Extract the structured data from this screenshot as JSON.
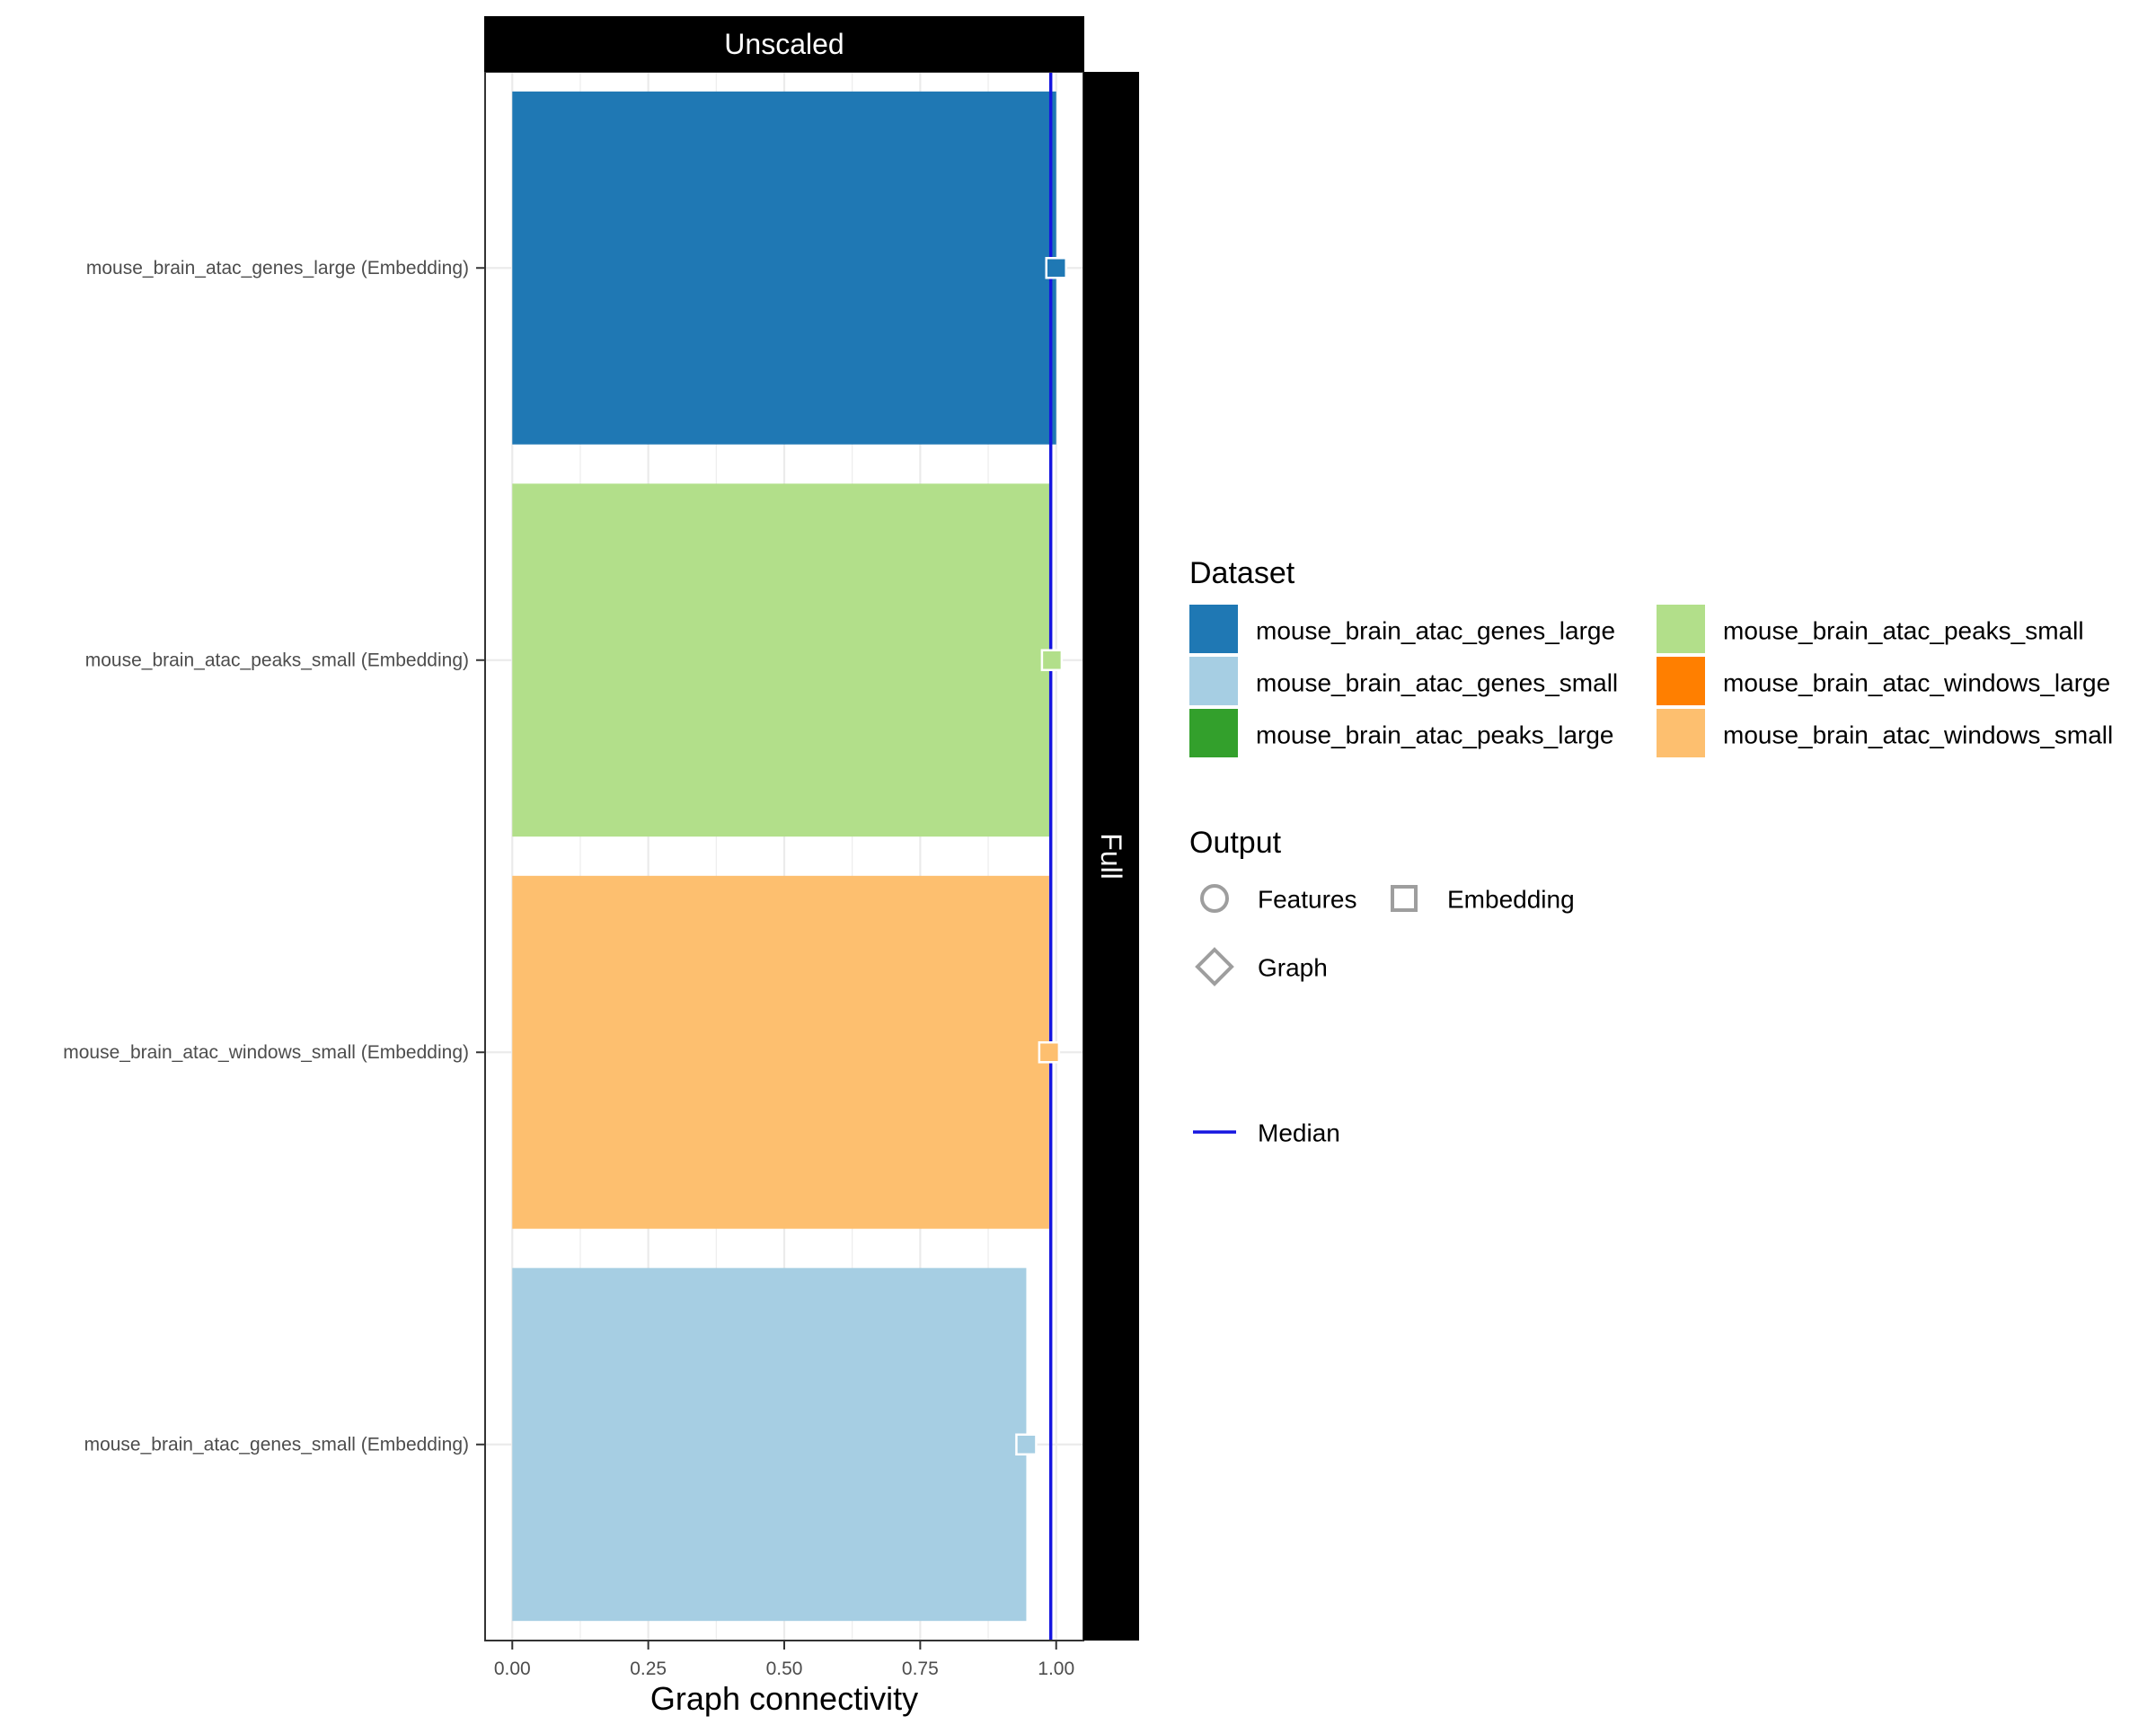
{
  "chart_data": {
    "type": "bar",
    "orientation": "horizontal",
    "facet_col_label": "Unscaled",
    "facet_row_label": "Full",
    "xlabel": "Graph connectivity",
    "ylabel": "",
    "xlim": [
      -0.05,
      1.05
    ],
    "x_ticks": [
      {
        "value": 0.0,
        "label": "0.00"
      },
      {
        "value": 0.25,
        "label": "0.25"
      },
      {
        "value": 0.5,
        "label": "0.50"
      },
      {
        "value": 0.75,
        "label": "0.75"
      },
      {
        "value": 1.0,
        "label": "1.00"
      }
    ],
    "grid": true,
    "median": 0.99,
    "bars": [
      {
        "label": "mouse_brain_atac_genes_large (Embedding)",
        "dataset": "mouse_brain_atac_genes_large",
        "output": "Embedding",
        "value": 1.0,
        "color": "#1F78B4"
      },
      {
        "label": "mouse_brain_atac_peaks_small (Embedding)",
        "dataset": "mouse_brain_atac_peaks_small",
        "output": "Embedding",
        "value": 0.992,
        "color": "#B2DF8A"
      },
      {
        "label": "mouse_brain_atac_windows_small (Embedding)",
        "dataset": "mouse_brain_atac_windows_small",
        "output": "Embedding",
        "value": 0.987,
        "color": "#FDBF6F"
      },
      {
        "label": "mouse_brain_atac_genes_small (Embedding)",
        "dataset": "mouse_brain_atac_genes_small",
        "output": "Embedding",
        "value": 0.945,
        "color": "#A6CEE3"
      }
    ],
    "legend": {
      "placement": "right",
      "dataset_title": "Dataset",
      "datasets": [
        {
          "name": "mouse_brain_atac_genes_large",
          "color": "#1F78B4"
        },
        {
          "name": "mouse_brain_atac_genes_small",
          "color": "#A6CEE3"
        },
        {
          "name": "mouse_brain_atac_peaks_large",
          "color": "#33A02C"
        },
        {
          "name": "mouse_brain_atac_peaks_small",
          "color": "#B2DF8A"
        },
        {
          "name": "mouse_brain_atac_windows_large",
          "color": "#FF7F00"
        },
        {
          "name": "mouse_brain_atac_windows_small",
          "color": "#FDBF6F"
        }
      ],
      "output_title": "Output",
      "outputs": [
        {
          "name": "Features",
          "shape": "circle"
        },
        {
          "name": "Embedding",
          "shape": "square"
        },
        {
          "name": "Graph",
          "shape": "diamond"
        }
      ],
      "median_label": "Median",
      "median_color": "#1515E0"
    }
  }
}
